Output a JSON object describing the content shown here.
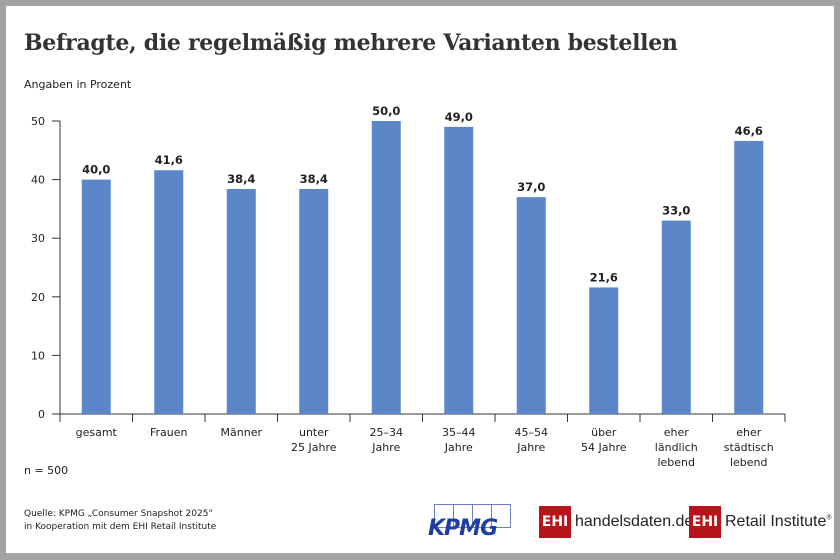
{
  "title": "Befragte, die regelmäßig mehrere Varianten bestellen",
  "subtitle": "Angaben in Prozent",
  "sample_note": "n = 500",
  "source_line1": "Quelle: KPMG „Consumer Snapshot 2025“",
  "source_line2": "in Kooperation mit dem EHI Retail Institute",
  "logos": {
    "kpmg": "KPMG",
    "ehi_badge": "EHI",
    "handelsdaten": "handelsdaten.de",
    "retail_institute": "Retail Institute",
    "registered": "®"
  },
  "colors": {
    "bar": "#5b87c8",
    "axis": "#333333",
    "ehi_red": "#b8121b",
    "kpmg_blue": "#1e3ea0"
  },
  "chart_data": {
    "type": "bar",
    "title": "Befragte, die regelmäßig mehrere Varianten bestellen",
    "ylabel": "Angaben in Prozent",
    "ylim": [
      0,
      50
    ],
    "yticks": [
      0,
      10,
      20,
      30,
      40,
      50
    ],
    "grid": false,
    "categories": [
      [
        "gesamt"
      ],
      [
        "Frauen"
      ],
      [
        "Männer"
      ],
      [
        "unter",
        "25 Jahre"
      ],
      [
        "25–34",
        "Jahre"
      ],
      [
        "35–44",
        "Jahre"
      ],
      [
        "45–54",
        "Jahre"
      ],
      [
        "über",
        "54 Jahre"
      ],
      [
        "eher",
        "ländlich",
        "lebend"
      ],
      [
        "eher",
        "städtisch",
        "lebend"
      ]
    ],
    "values": [
      40.0,
      41.6,
      38.4,
      38.4,
      50.0,
      49.0,
      37.0,
      21.6,
      33.0,
      46.6
    ],
    "value_labels": [
      "40,0",
      "41,6",
      "38,4",
      "38,4",
      "50,0",
      "49,0",
      "37,0",
      "21,6",
      "33,0",
      "46,6"
    ]
  }
}
